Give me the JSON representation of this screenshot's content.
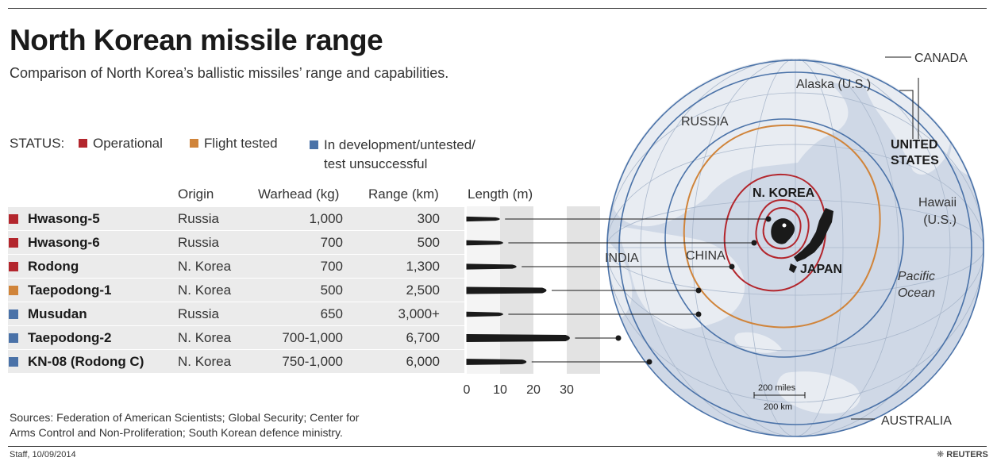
{
  "title": "North Korean missile range",
  "subtitle": "Comparison of North Korea’s ballistic missiles’ range and capabilities.",
  "legend": {
    "label": "STATUS:",
    "items": [
      {
        "label": "Operational",
        "color": "#b3262d"
      },
      {
        "label": "Flight tested",
        "color": "#d0843a"
      },
      {
        "label": "In development/untested/",
        "label2": "test unsuccessful",
        "color": "#4a72a8"
      }
    ]
  },
  "columns": {
    "origin": "Origin",
    "warhead": "Warhead (kg)",
    "range": "Range (km)",
    "length": "Length (m)"
  },
  "chart_data": {
    "type": "table",
    "title": "North Korean missile range",
    "rows": [
      {
        "name": "Hwasong-5",
        "status": "Operational",
        "color": "#b3262d",
        "origin": "Russia",
        "warhead": "1,000",
        "range": "300",
        "range_km": 300,
        "length_m": 11
      },
      {
        "name": "Hwasong-6",
        "status": "Operational",
        "color": "#b3262d",
        "origin": "Russia",
        "warhead": "700",
        "range": "500",
        "range_km": 500,
        "length_m": 12
      },
      {
        "name": "Rodong",
        "status": "Operational",
        "color": "#b3262d",
        "origin": "N. Korea",
        "warhead": "700",
        "range": "1,300",
        "range_km": 1300,
        "length_m": 16
      },
      {
        "name": "Taepodong-1",
        "status": "Flight tested",
        "color": "#d0843a",
        "origin": "N. Korea",
        "warhead": "500",
        "range": "2,500",
        "range_km": 2500,
        "length_m": 25
      },
      {
        "name": "Musudan",
        "status": "In development/untested/test unsuccessful",
        "color": "#4a72a8",
        "origin": "Russia",
        "warhead": "650",
        "range": "3,000+",
        "range_km": 3000,
        "length_m": 12
      },
      {
        "name": "Taepodong-2",
        "status": "In development/untested/test unsuccessful",
        "color": "#4a72a8",
        "origin": "N. Korea",
        "warhead": "700-1,000",
        "range": "6,700",
        "range_km": 6700,
        "length_m": 32
      },
      {
        "name": "KN-08 (Rodong C)",
        "status": "In development/untested/test unsuccessful",
        "color": "#4a72a8",
        "origin": "N. Korea",
        "warhead": "750-1,000",
        "range": "6,000",
        "range_km": 6000,
        "length_m": 19
      }
    ],
    "length_axis": {
      "label": "Length (m)",
      "ticks": [
        "0",
        "10",
        "20",
        "30"
      ],
      "tick_values": [
        0,
        10,
        20,
        30
      ],
      "min": 0,
      "max": 30
    }
  },
  "map": {
    "labels": {
      "russia": "RUSSIA",
      "alaska": "Alaska (U.S.)",
      "canada": "CANADA",
      "us_line1": "UNITED",
      "us_line2": "STATES",
      "hawaii_line1": "Hawaii",
      "hawaii_line2": "(U.S.)",
      "nkorea": "N. KOREA",
      "japan": "JAPAN",
      "china": "CHINA",
      "india": "INDIA",
      "ocean_line1": "Pacific",
      "ocean_line2": "Ocean",
      "australia": "AUSTRALIA",
      "scale_miles": "200 miles",
      "scale_km": "200 km"
    },
    "colors": {
      "globe": "#cfd8e6",
      "land": "#e6ebf2",
      "grid": "#aab8cc",
      "operational": "#b3262d",
      "tested": "#d0843a",
      "development": "#4a72a8"
    }
  },
  "footer": {
    "sources_line1": "Sources: Federation of American Scientists; Global Security; Center for",
    "sources_line2": "Arms Control and Non-Proliferation; South Korean defence ministry.",
    "staff": "Staff, 10/09/2014",
    "brand": "REUTERS"
  }
}
